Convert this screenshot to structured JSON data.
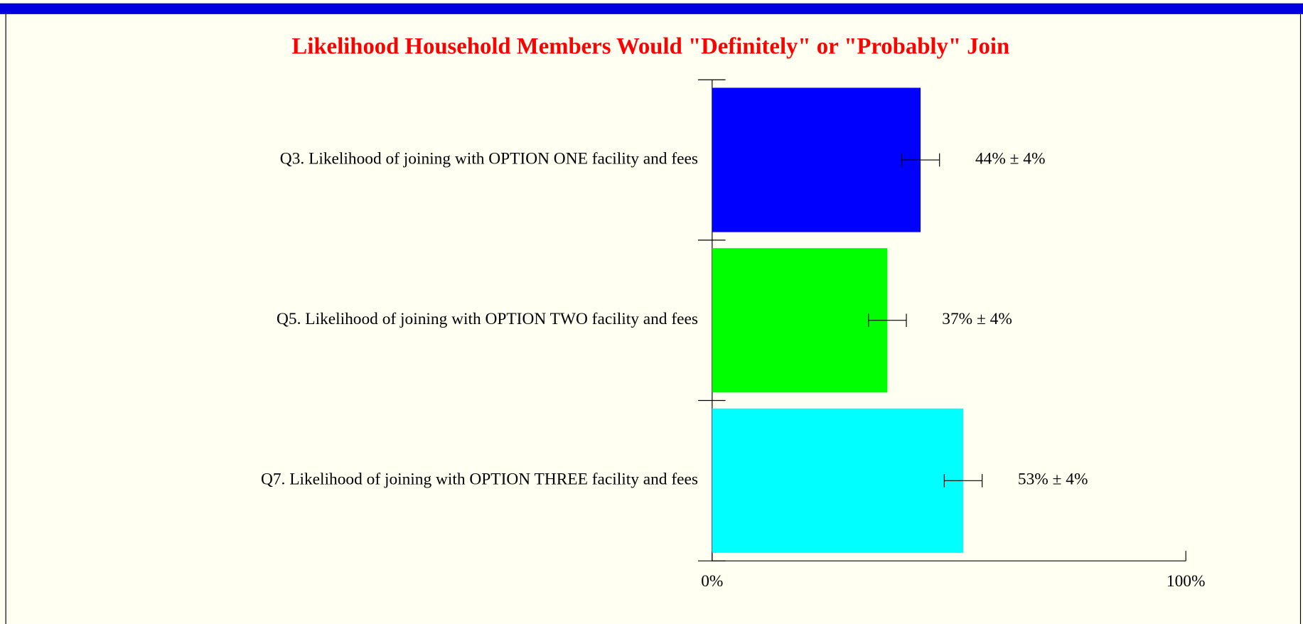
{
  "chart_data": {
    "type": "bar",
    "orientation": "horizontal",
    "title": "Likelihood Household Members Would \"Definitely\" or \"Probably\" Join",
    "categories": [
      "Q3. Likelihood of joining with OPTION ONE facility and fees",
      "Q5. Likelihood of joining with OPTION TWO facility and fees",
      "Q7. Likelihood of joining with OPTION THREE facility and fees"
    ],
    "values": [
      44,
      37,
      53
    ],
    "errors": [
      4,
      4,
      4
    ],
    "value_labels": [
      "44% ± 4%",
      "37% ± 4%",
      "53% ± 4%"
    ],
    "colors": [
      "#0000ff",
      "#00ff00",
      "#00ffff"
    ],
    "xlim": [
      0,
      100
    ],
    "xticks": [
      {
        "value": 0,
        "label": "0%"
      },
      {
        "value": 100,
        "label": "100%"
      }
    ]
  }
}
